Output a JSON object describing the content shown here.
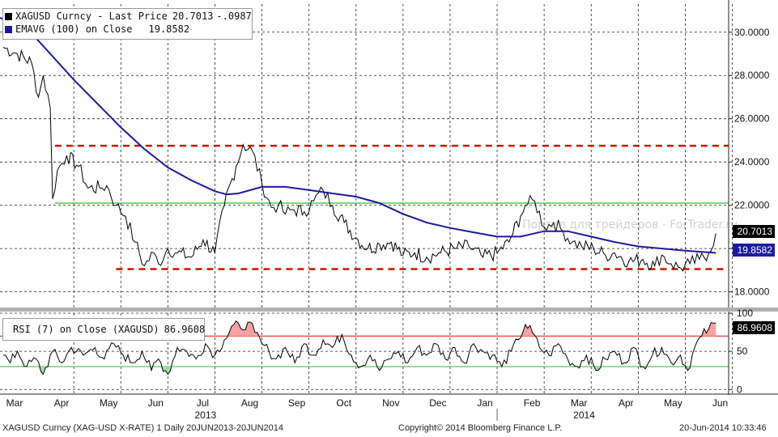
{
  "legend_price": {
    "name": "XAGUSD Curncy - Last Price",
    "value": "20.7013",
    "change": "-.0987",
    "ema_name": "EMAVG (100) on Close",
    "ema_value": "19.8582"
  },
  "legend_rsi": {
    "name": "RSI (7) on Close (XAGUSD)",
    "value": "86.9608"
  },
  "watermark": "Портал для трейдеров - ForTrader.ru",
  "footer": {
    "left": "XAGUSD Curncy (XAG-USD X-RATE) 1  Daily 20JUN2013-20JUN2014",
    "center": "Copyright© 2014 Bloomberg Finance L.P.",
    "right": "20-Jun-2014 10:33:46"
  },
  "colors": {
    "price": "#000000",
    "ema": "#1a1aa0",
    "resistance": "#cc1100",
    "support_green": "#33bb33",
    "rsi_overbought_fill": "#f2a0a0",
    "rsi_oversold_fill": "#a0e0a0",
    "rsi_line": "#000000",
    "tag_price": "#000000",
    "tag_ema": "#1a1aa0",
    "tag_rsi": "#000000"
  },
  "chart_data": [
    {
      "type": "line",
      "title": "XAGUSD Curncy - Last Price",
      "ylim": [
        17.2,
        31.3
      ],
      "yticks": [
        "18.0000",
        "20.0000",
        "22.0000",
        "24.0000",
        "26.0000",
        "28.0000",
        "30.0000"
      ],
      "ytick_values": [
        18,
        20,
        22,
        24,
        26,
        28,
        30
      ],
      "xticks": [
        "Mar",
        "Apr",
        "May",
        "Jun",
        "Jul",
        "Aug",
        "Sep",
        "Oct",
        "Nov",
        "Dec",
        "Jan",
        "Feb",
        "Mar",
        "Apr",
        "May",
        "Jun"
      ],
      "year_labels": [
        "2013",
        "2014"
      ],
      "last_price_label": "20.7013",
      "ema_label": "19.8582",
      "grid": true,
      "horizontal_levels": [
        {
          "value": 24.75,
          "style": "dashed",
          "color": "resistance"
        },
        {
          "value": 22.1,
          "style": "solid",
          "color": "support_green"
        },
        {
          "value": 19.05,
          "style": "dashed",
          "color": "resistance"
        }
      ],
      "series": [
        {
          "name": "XAGUSD Curncy - Last Price",
          "x_month_index": [
            0.0,
            0.3,
            0.6,
            0.75,
            0.85,
            1.0,
            1.05,
            1.15,
            1.35,
            1.6,
            1.8,
            2.05,
            2.2,
            2.4,
            2.6,
            2.8,
            3.0,
            3.2,
            3.3,
            3.5,
            3.7,
            4.0,
            4.25,
            4.5,
            4.7,
            4.95,
            5.1,
            5.3,
            5.5,
            5.7,
            5.85,
            6.0,
            6.15,
            6.4,
            6.6,
            6.8,
            7.0,
            7.25,
            7.5,
            7.75,
            8.0,
            8.25,
            8.5,
            8.75,
            9.0,
            9.3,
            9.6,
            9.9,
            10.2,
            10.5,
            10.75,
            11.0,
            11.1,
            11.3,
            11.5,
            11.7,
            11.9,
            12.1,
            12.3,
            12.55,
            12.8,
            13.0,
            13.3,
            13.6,
            13.85,
            14.0,
            14.2,
            14.4,
            14.6,
            14.8,
            15.0,
            15.15
          ],
          "values": [
            29.3,
            29.0,
            28.6,
            27.0,
            28.0,
            26.5,
            22.3,
            23.6,
            24.3,
            23.8,
            22.8,
            22.8,
            22.9,
            22.0,
            21.5,
            20.3,
            19.2,
            19.8,
            19.3,
            20.0,
            19.8,
            19.6,
            20.4,
            19.8,
            22.0,
            23.8,
            24.8,
            24.5,
            23.0,
            21.9,
            22.0,
            21.6,
            21.8,
            21.7,
            22.2,
            22.7,
            22.0,
            21.2,
            20.5,
            20.0,
            20.2,
            20.3,
            19.7,
            19.8,
            19.6,
            19.8,
            20.0,
            20.1,
            19.6,
            19.8,
            20.3,
            21.5,
            22.0,
            22.2,
            21.0,
            21.2,
            20.8,
            20.3,
            20.1,
            20.0,
            19.7,
            19.8,
            19.4,
            19.5,
            19.2,
            19.7,
            19.3,
            19.1,
            19.3,
            19.5,
            19.8,
            20.7
          ]
        },
        {
          "name": "EMAVG (100) on Close",
          "x_month_index": [
            -0.3,
            0.5,
            1.0,
            1.5,
            2.0,
            2.5,
            3.0,
            3.5,
            4.0,
            4.5,
            4.75,
            5.0,
            5.5,
            6.0,
            6.5,
            7.0,
            7.5,
            8.0,
            8.5,
            9.0,
            9.5,
            10.0,
            10.5,
            11.0,
            11.5,
            12.0,
            12.5,
            13.0,
            13.5,
            14.0,
            14.5,
            15.15
          ],
          "values": [
            30.85,
            30.2,
            29.0,
            27.8,
            26.7,
            25.6,
            24.6,
            23.75,
            23.15,
            22.65,
            22.5,
            22.55,
            22.85,
            22.85,
            22.7,
            22.55,
            22.4,
            22.1,
            21.6,
            21.2,
            20.95,
            20.75,
            20.55,
            20.55,
            20.8,
            20.8,
            20.55,
            20.3,
            20.1,
            20.0,
            19.9,
            19.8
          ]
        }
      ]
    },
    {
      "type": "line",
      "title": "RSI (7) on Close (XAGUSD)",
      "ylim": [
        -5,
        100
      ],
      "yticks": [
        "0",
        "50",
        "100"
      ],
      "ytick_values": [
        0,
        50,
        100
      ],
      "last_value_label": "86.9608",
      "horizontal_levels": [
        {
          "value": 70,
          "color": "resistance"
        },
        {
          "value": 30,
          "color": "support_green"
        }
      ],
      "series": [
        {
          "name": "RSI (7) on Close (XAGUSD)",
          "x_month_index": [
            0.0,
            0.15,
            0.3,
            0.5,
            0.7,
            0.85,
            1.05,
            1.25,
            1.45,
            1.7,
            1.95,
            2.15,
            2.35,
            2.55,
            2.75,
            2.95,
            3.15,
            3.3,
            3.5,
            3.7,
            3.9,
            4.1,
            4.3,
            4.5,
            4.7,
            4.9,
            5.05,
            5.2,
            5.35,
            5.5,
            5.65,
            5.8,
            6.0,
            6.2,
            6.4,
            6.6,
            6.8,
            7.0,
            7.2,
            7.4,
            7.6,
            7.8,
            8.0,
            8.2,
            8.4,
            8.6,
            8.8,
            9.0,
            9.2,
            9.4,
            9.6,
            9.8,
            10.0,
            10.2,
            10.4,
            10.6,
            10.8,
            10.95,
            11.1,
            11.25,
            11.4,
            11.6,
            11.8,
            12.0,
            12.2,
            12.4,
            12.6,
            12.8,
            13.0,
            13.2,
            13.4,
            13.6,
            13.8,
            14.0,
            14.2,
            14.4,
            14.55,
            14.7,
            14.85,
            15.0,
            15.15
          ],
          "values": [
            45,
            35,
            50,
            30,
            40,
            20,
            50,
            35,
            55,
            45,
            55,
            40,
            60,
            45,
            35,
            50,
            25,
            40,
            20,
            55,
            50,
            40,
            60,
            45,
            65,
            85,
            80,
            88,
            75,
            60,
            50,
            40,
            55,
            35,
            60,
            45,
            65,
            55,
            72,
            45,
            30,
            45,
            25,
            40,
            50,
            35,
            55,
            45,
            60,
            40,
            55,
            35,
            60,
            50,
            45,
            30,
            50,
            65,
            85,
            75,
            55,
            45,
            60,
            40,
            30,
            45,
            25,
            40,
            50,
            35,
            55,
            30,
            45,
            55,
            35,
            45,
            25,
            55,
            70,
            80,
            87
          ]
        }
      ]
    }
  ]
}
